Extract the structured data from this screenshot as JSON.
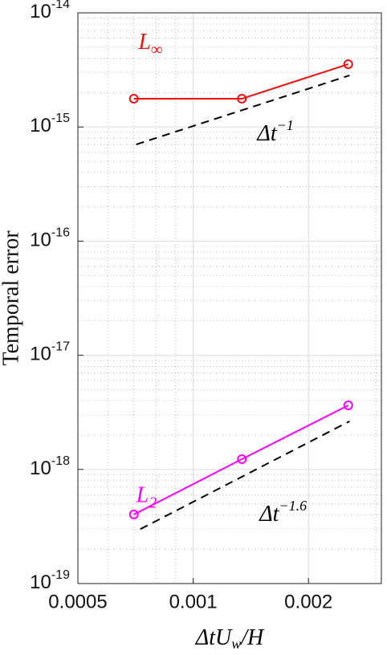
{
  "chart_data": {
    "type": "line",
    "xlabel": {
      "base": "ΔtU",
      "sub": "w",
      "rest": "/H"
    },
    "ylabel": "Temporal error",
    "xscale": "log",
    "yscale": "log",
    "grid": true,
    "xlim": [
      0.0005,
      0.0031
    ],
    "ylim": [
      1e-19,
      1e-14
    ],
    "xticks": [
      0.0005,
      0.001,
      0.002
    ],
    "yticks": [
      {
        "value": 1e-19,
        "label": "10",
        "exponent": "-19"
      },
      {
        "value": 1e-18,
        "label": "10",
        "exponent": "-18"
      },
      {
        "value": 1e-17,
        "label": "10",
        "exponent": "-17"
      },
      {
        "value": 1e-16,
        "label": "10",
        "exponent": "-16"
      },
      {
        "value": 1e-15,
        "label": "10",
        "exponent": "-15"
      },
      {
        "value": 1e-14,
        "label": "10",
        "exponent": "-14"
      }
    ],
    "series": [
      {
        "color": "#ee1111",
        "style": "solid",
        "marker": true,
        "x": [
          0.0007,
          0.00134,
          0.00254
        ],
        "values": [
          1.77e-15,
          1.77e-15,
          3.55e-15
        ]
      },
      {
        "color": "#ff00ff",
        "style": "solid",
        "marker": true,
        "x": [
          0.0007,
          0.00134,
          0.00254
        ],
        "values": [
          4.03e-19,
          1.23e-18,
          3.64e-18
        ]
      },
      {
        "color": "#000000",
        "style": "dashed",
        "marker": false,
        "x": [
          0.00071,
          0.00256
        ],
        "values": [
          7.03e-16,
          2.83e-15
        ]
      },
      {
        "color": "#000000",
        "style": "dashed",
        "marker": false,
        "x": [
          0.000728,
          0.00256
        ],
        "values": [
          3e-19,
          2.64e-18
        ]
      }
    ],
    "annotations": [
      {
        "base": "L",
        "sub": "∞",
        "color": "#ee1111",
        "x": 0.00072,
        "y": 5.3e-15
      },
      {
        "base": "Δt",
        "sup": "−1",
        "color": "#000000",
        "x": 0.00147,
        "y": 8.4e-16
      },
      {
        "base": "L",
        "sub": "2",
        "color": "#ff00ff",
        "x": 0.00071,
        "y": 5.7e-19
      },
      {
        "base": "Δt",
        "sup": "−1.6",
        "color": "#000000",
        "x": 0.00149,
        "y": 3.9e-19
      }
    ]
  }
}
